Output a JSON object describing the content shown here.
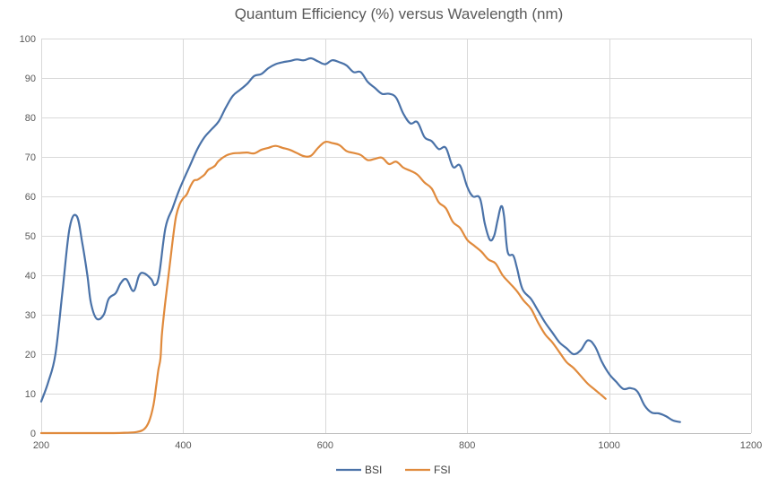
{
  "chart_data": {
    "type": "line",
    "title": "Quantum Efficiency (%) versus Wavelength (nm)",
    "xlabel": "",
    "ylabel": "",
    "xlim": [
      200,
      1200
    ],
    "ylim": [
      0,
      100
    ],
    "x_ticks": [
      200,
      400,
      600,
      800,
      1000,
      1200
    ],
    "y_ticks": [
      0,
      10,
      20,
      30,
      40,
      50,
      60,
      70,
      80,
      90,
      100
    ],
    "grid": true,
    "legend": "bottom-center",
    "series": [
      {
        "name": "BSI",
        "color": "#4a72a8",
        "points": [
          [
            200,
            8
          ],
          [
            210,
            13
          ],
          [
            220,
            20
          ],
          [
            230,
            36
          ],
          [
            240,
            52
          ],
          [
            250,
            55
          ],
          [
            258,
            48
          ],
          [
            265,
            40
          ],
          [
            270,
            33
          ],
          [
            278,
            29
          ],
          [
            288,
            30
          ],
          [
            295,
            34
          ],
          [
            305,
            35.5
          ],
          [
            312,
            38
          ],
          [
            320,
            39
          ],
          [
            330,
            36
          ],
          [
            338,
            40
          ],
          [
            345,
            40.5
          ],
          [
            355,
            39
          ],
          [
            360,
            37.5
          ],
          [
            366,
            40
          ],
          [
            375,
            52
          ],
          [
            385,
            57
          ],
          [
            393,
            61
          ],
          [
            400,
            64
          ],
          [
            410,
            68
          ],
          [
            420,
            72
          ],
          [
            430,
            75
          ],
          [
            440,
            77
          ],
          [
            450,
            79
          ],
          [
            460,
            82.5
          ],
          [
            470,
            85.5
          ],
          [
            480,
            87
          ],
          [
            490,
            88.5
          ],
          [
            500,
            90.5
          ],
          [
            510,
            91
          ],
          [
            520,
            92.5
          ],
          [
            530,
            93.5
          ],
          [
            540,
            94
          ],
          [
            550,
            94.3
          ],
          [
            560,
            94.7
          ],
          [
            570,
            94.5
          ],
          [
            580,
            95
          ],
          [
            590,
            94.2
          ],
          [
            600,
            93.5
          ],
          [
            610,
            94.5
          ],
          [
            620,
            94
          ],
          [
            630,
            93.2
          ],
          [
            640,
            91.5
          ],
          [
            650,
            91.5
          ],
          [
            660,
            89
          ],
          [
            670,
            87.5
          ],
          [
            680,
            86
          ],
          [
            690,
            86
          ],
          [
            700,
            85
          ],
          [
            710,
            81
          ],
          [
            720,
            78.5
          ],
          [
            730,
            78.8
          ],
          [
            740,
            75
          ],
          [
            750,
            74
          ],
          [
            760,
            72
          ],
          [
            770,
            72.3
          ],
          [
            780,
            67.5
          ],
          [
            790,
            67.8
          ],
          [
            800,
            62.5
          ],
          [
            808,
            60
          ],
          [
            818,
            59.5
          ],
          [
            825,
            53
          ],
          [
            832,
            49
          ],
          [
            838,
            50
          ],
          [
            843,
            54
          ],
          [
            848,
            57.5
          ],
          [
            852,
            55
          ],
          [
            857,
            46
          ],
          [
            865,
            45
          ],
          [
            870,
            42
          ],
          [
            878,
            36.5
          ],
          [
            890,
            34
          ],
          [
            900,
            31
          ],
          [
            910,
            28
          ],
          [
            920,
            25.5
          ],
          [
            930,
            23
          ],
          [
            940,
            21.5
          ],
          [
            950,
            20
          ],
          [
            960,
            21
          ],
          [
            970,
            23.5
          ],
          [
            980,
            22
          ],
          [
            990,
            18
          ],
          [
            1000,
            15
          ],
          [
            1010,
            13
          ],
          [
            1020,
            11.2
          ],
          [
            1030,
            11.4
          ],
          [
            1040,
            10.5
          ],
          [
            1050,
            7
          ],
          [
            1060,
            5.2
          ],
          [
            1070,
            5
          ],
          [
            1080,
            4.3
          ],
          [
            1090,
            3.2
          ],
          [
            1100,
            2.8
          ]
        ]
      },
      {
        "name": "FSI",
        "color": "#e08a3c",
        "points": [
          [
            200,
            0
          ],
          [
            250,
            0
          ],
          [
            300,
            0
          ],
          [
            320,
            0.1
          ],
          [
            335,
            0.3
          ],
          [
            345,
            1
          ],
          [
            352,
            3
          ],
          [
            358,
            7
          ],
          [
            362,
            12
          ],
          [
            365,
            16
          ],
          [
            368,
            19
          ],
          [
            370,
            25
          ],
          [
            374,
            32
          ],
          [
            378,
            38
          ],
          [
            382,
            44
          ],
          [
            386,
            50
          ],
          [
            390,
            55
          ],
          [
            395,
            58
          ],
          [
            400,
            59.5
          ],
          [
            405,
            60.5
          ],
          [
            410,
            62.5
          ],
          [
            415,
            64
          ],
          [
            420,
            64.2
          ],
          [
            425,
            64.8
          ],
          [
            430,
            65.5
          ],
          [
            435,
            66.7
          ],
          [
            440,
            67.2
          ],
          [
            445,
            67.8
          ],
          [
            450,
            69
          ],
          [
            460,
            70.3
          ],
          [
            470,
            70.9
          ],
          [
            480,
            71
          ],
          [
            490,
            71.1
          ],
          [
            500,
            70.9
          ],
          [
            510,
            71.8
          ],
          [
            520,
            72.3
          ],
          [
            530,
            72.8
          ],
          [
            540,
            72.3
          ],
          [
            550,
            71.8
          ],
          [
            560,
            71
          ],
          [
            570,
            70.2
          ],
          [
            580,
            70.3
          ],
          [
            590,
            72.3
          ],
          [
            600,
            73.8
          ],
          [
            610,
            73.5
          ],
          [
            620,
            73
          ],
          [
            630,
            71.5
          ],
          [
            640,
            71
          ],
          [
            650,
            70.5
          ],
          [
            660,
            69.2
          ],
          [
            670,
            69.5
          ],
          [
            680,
            69.8
          ],
          [
            690,
            68.2
          ],
          [
            700,
            68.8
          ],
          [
            710,
            67.3
          ],
          [
            720,
            66.5
          ],
          [
            730,
            65.5
          ],
          [
            740,
            63.5
          ],
          [
            750,
            62
          ],
          [
            760,
            58.5
          ],
          [
            770,
            57
          ],
          [
            780,
            53.5
          ],
          [
            790,
            52
          ],
          [
            800,
            49
          ],
          [
            810,
            47.5
          ],
          [
            820,
            46
          ],
          [
            830,
            44
          ],
          [
            840,
            43
          ],
          [
            850,
            40
          ],
          [
            860,
            38
          ],
          [
            870,
            36
          ],
          [
            880,
            33.5
          ],
          [
            890,
            31.5
          ],
          [
            900,
            28
          ],
          [
            910,
            25
          ],
          [
            920,
            23
          ],
          [
            930,
            20.5
          ],
          [
            940,
            18
          ],
          [
            950,
            16.5
          ],
          [
            960,
            14.5
          ],
          [
            970,
            12.5
          ],
          [
            980,
            11
          ],
          [
            990,
            9.5
          ],
          [
            995,
            8.7
          ]
        ]
      }
    ]
  }
}
